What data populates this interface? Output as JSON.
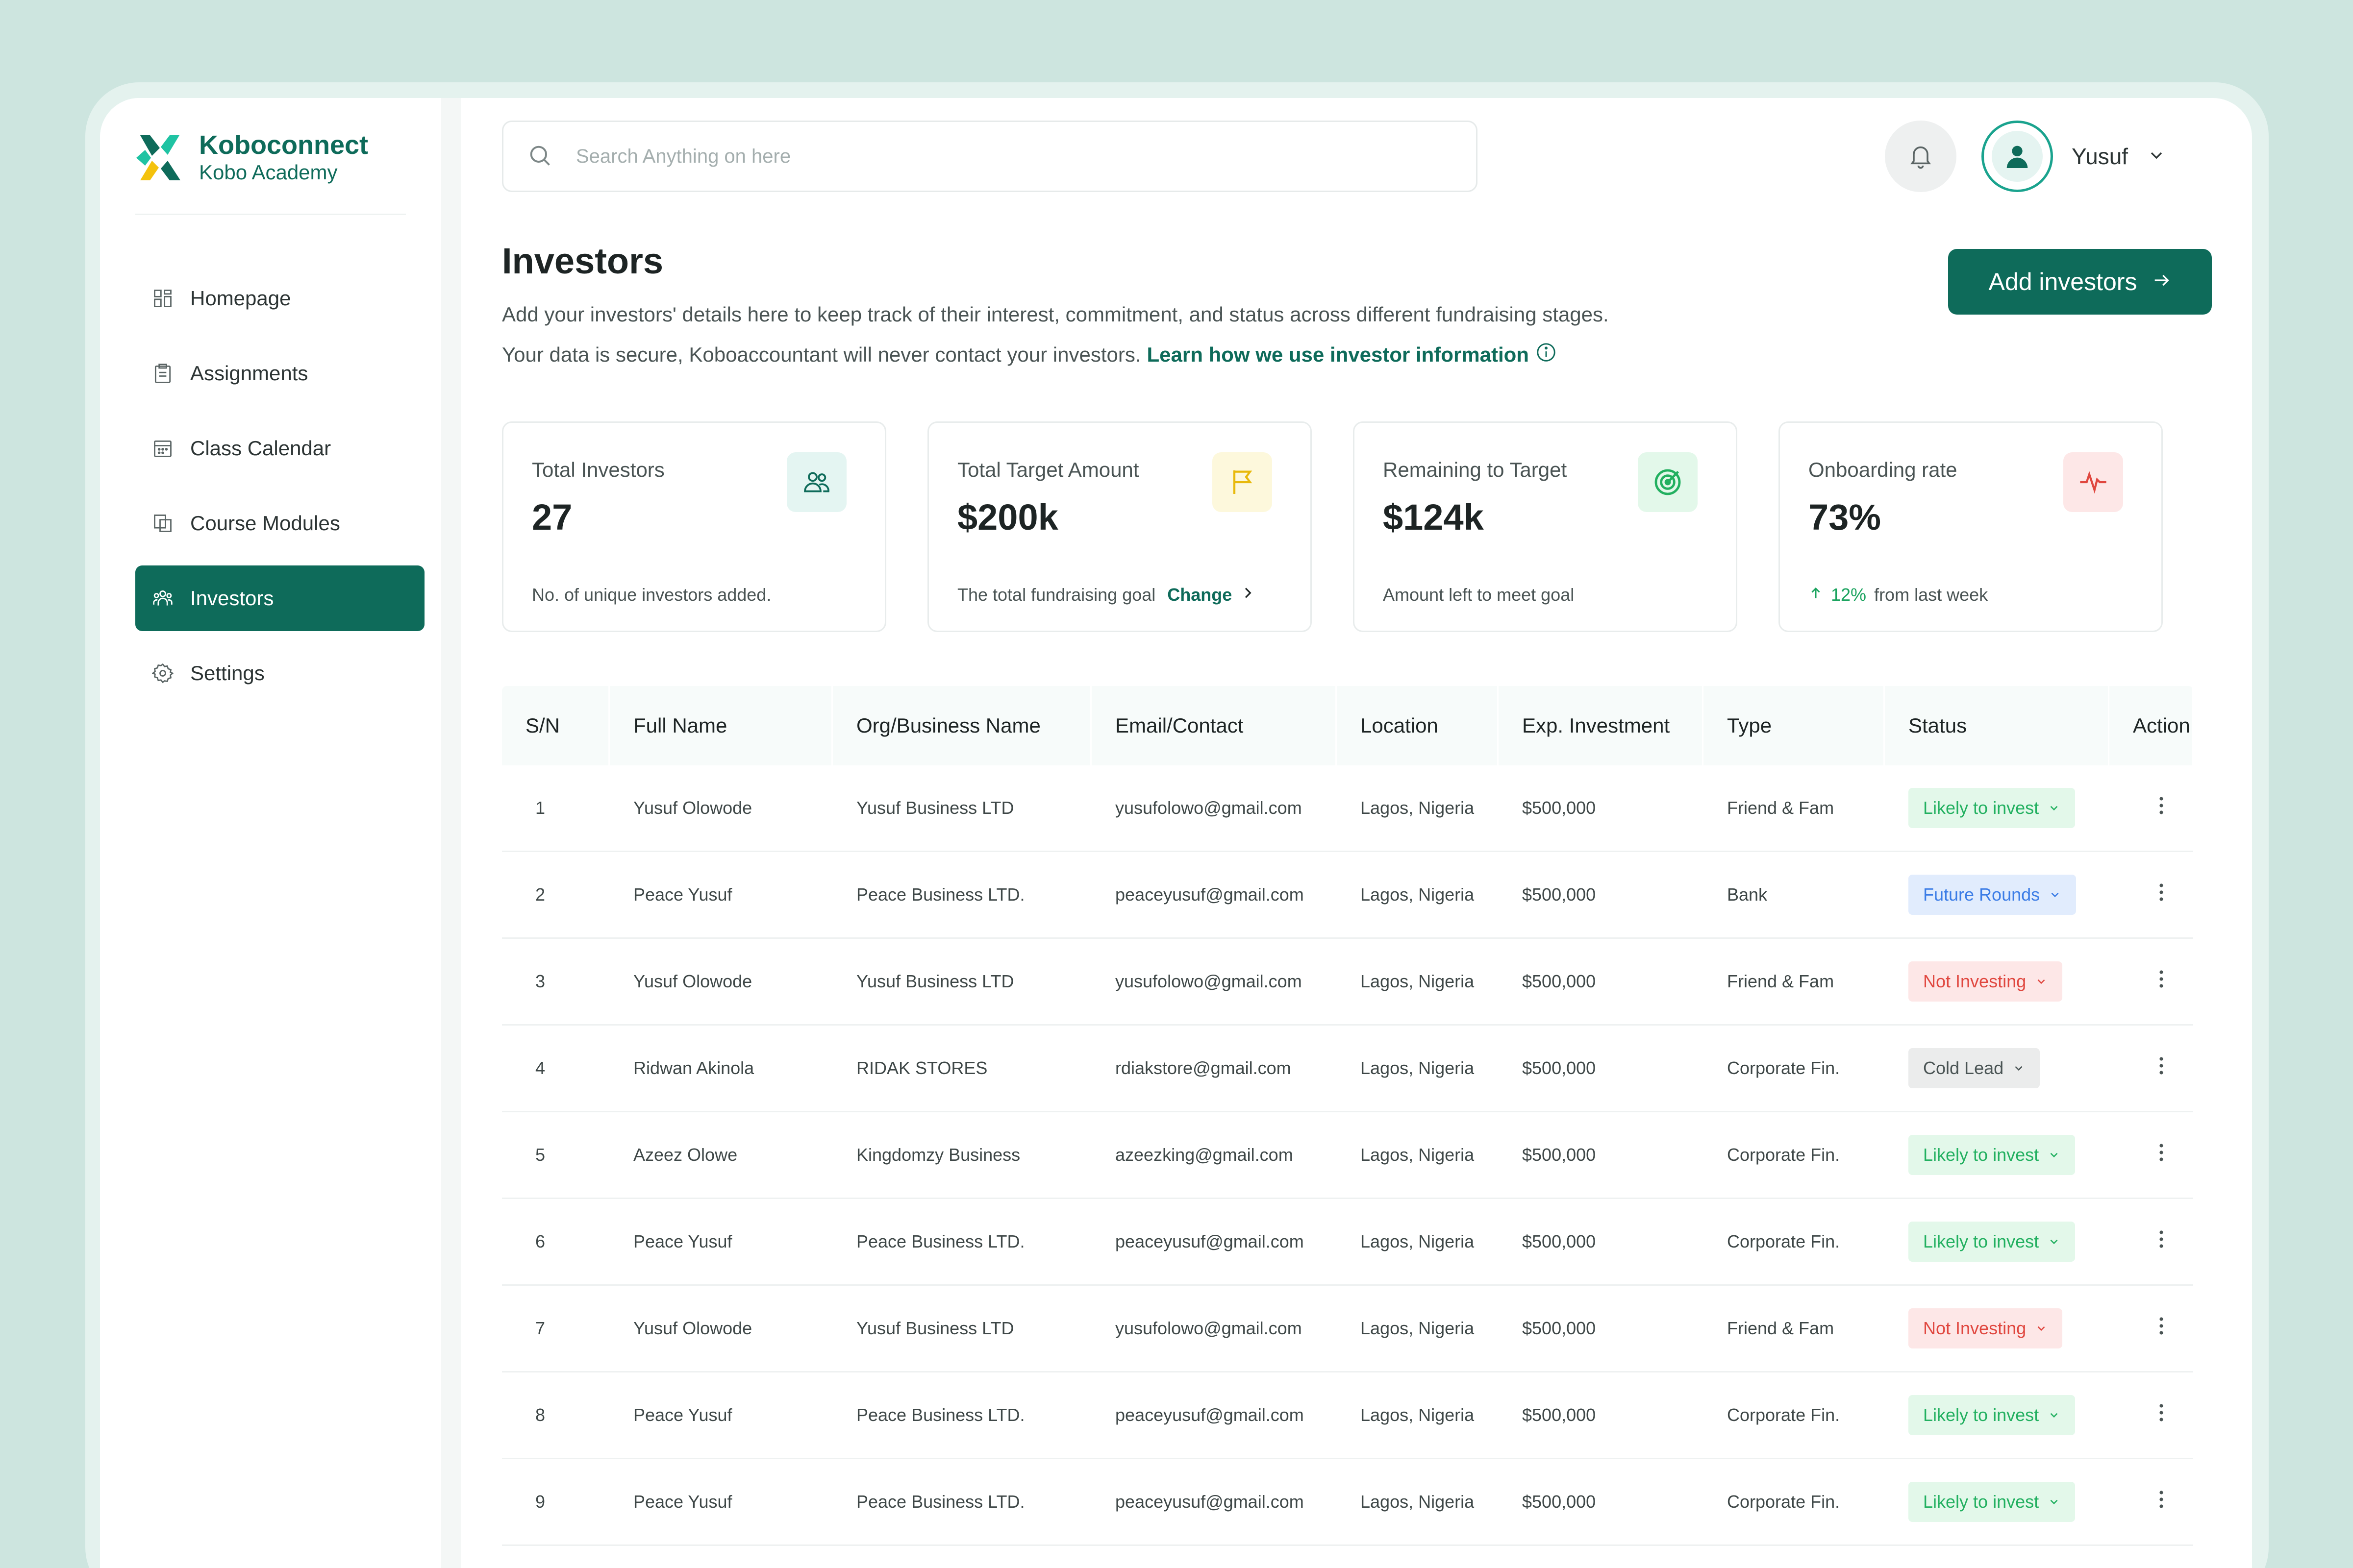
{
  "brand": {
    "name": "Koboconnect",
    "sub": "Kobo Academy"
  },
  "sidebar": {
    "items": [
      {
        "label": "Homepage",
        "icon": "grid-icon",
        "active": false
      },
      {
        "label": "Assignments",
        "icon": "clipboard-icon",
        "active": false
      },
      {
        "label": "Class Calendar",
        "icon": "calendar-icon",
        "active": false
      },
      {
        "label": "Course Modules",
        "icon": "modules-icon",
        "active": false
      },
      {
        "label": "Investors",
        "icon": "investors-icon",
        "active": true
      },
      {
        "label": "Settings",
        "icon": "gear-icon",
        "active": false
      }
    ]
  },
  "header": {
    "search_placeholder": "Search Anything on here",
    "user_name": "Yusuf"
  },
  "page": {
    "title": "Investors",
    "desc_line1": "Add your investors' details here to keep track of their interest, commitment, and status across different fundraising stages.",
    "desc_line2": "Your data is secure, Koboaccountant will never contact your investors.",
    "desc_link": "Learn how we use investor information",
    "add_button": "Add investors"
  },
  "cards": [
    {
      "label": "Total Investors",
      "value": "27",
      "foot": "No. of unique investors added.",
      "icon": "people-icon"
    },
    {
      "label": "Total Target Amount",
      "value": "$200k",
      "foot": "The total fundraising goal",
      "link": "Change",
      "icon": "flag-icon"
    },
    {
      "label": "Remaining to Target",
      "value": "$124k",
      "foot": "Amount left to meet goal",
      "icon": "target-icon"
    },
    {
      "label": "Onboarding rate",
      "value": "73%",
      "trend": "12%",
      "foot": "from last week",
      "icon": "pulse-icon"
    }
  ],
  "table": {
    "headers": [
      "S/N",
      "Full Name",
      "Org/Business Name",
      "Email/Contact",
      "Location",
      "Exp. Investment",
      "Type",
      "Status",
      "Action"
    ],
    "rows": [
      {
        "sn": "1",
        "name": "Yusuf Olowode",
        "org": "Yusuf Business LTD",
        "email": "yusufolowo@gmail.com",
        "location": "Lagos, Nigeria",
        "investment": "$500,000",
        "type": "Friend & Fam",
        "status": "Likely to invest",
        "status_kind": "likely"
      },
      {
        "sn": "2",
        "name": "Peace Yusuf",
        "org": "Peace Business LTD.",
        "email": "peaceyusuf@gmail.com",
        "location": "Lagos, Nigeria",
        "investment": "$500,000",
        "type": "Bank",
        "status": "Future Rounds",
        "status_kind": "future"
      },
      {
        "sn": "3",
        "name": "Yusuf Olowode",
        "org": "Yusuf Business LTD",
        "email": "yusufolowo@gmail.com",
        "location": "Lagos, Nigeria",
        "investment": "$500,000",
        "type": "Friend & Fam",
        "status": "Not Investing",
        "status_kind": "not"
      },
      {
        "sn": "4",
        "name": "Ridwan Akinola",
        "org": "RIDAK STORES",
        "email": "rdiakstore@gmail.com",
        "location": "Lagos, Nigeria",
        "investment": "$500,000",
        "type": "Corporate Fin.",
        "status": "Cold Lead",
        "status_kind": "cold"
      },
      {
        "sn": "5",
        "name": "Azeez Olowe",
        "org": "Kingdomzy Business",
        "email": "azeezking@gmail.com",
        "location": "Lagos, Nigeria",
        "investment": "$500,000",
        "type": "Corporate Fin.",
        "status": "Likely to invest",
        "status_kind": "likely"
      },
      {
        "sn": "6",
        "name": "Peace Yusuf",
        "org": "Peace Business LTD.",
        "email": "peaceyusuf@gmail.com",
        "location": "Lagos, Nigeria",
        "investment": "$500,000",
        "type": "Corporate Fin.",
        "status": "Likely to invest",
        "status_kind": "likely"
      },
      {
        "sn": "7",
        "name": "Yusuf Olowode",
        "org": "Yusuf Business LTD",
        "email": "yusufolowo@gmail.com",
        "location": "Lagos, Nigeria",
        "investment": "$500,000",
        "type": "Friend & Fam",
        "status": "Not Investing",
        "status_kind": "not"
      },
      {
        "sn": "8",
        "name": "Peace Yusuf",
        "org": "Peace Business LTD.",
        "email": "peaceyusuf@gmail.com",
        "location": "Lagos, Nigeria",
        "investment": "$500,000",
        "type": "Corporate Fin.",
        "status": "Likely to invest",
        "status_kind": "likely"
      },
      {
        "sn": "9",
        "name": "Peace Yusuf",
        "org": "Peace Business LTD.",
        "email": "peaceyusuf@gmail.com",
        "location": "Lagos, Nigeria",
        "investment": "$500,000",
        "type": "Corporate Fin.",
        "status": "Likely to invest",
        "status_kind": "likely"
      }
    ]
  },
  "colors": {
    "primary": "#0e6b5a",
    "accent": "#1aa38e",
    "likely": "#22b060",
    "future": "#3b7ce6",
    "not": "#e0473f",
    "cold": "#4a5454"
  }
}
